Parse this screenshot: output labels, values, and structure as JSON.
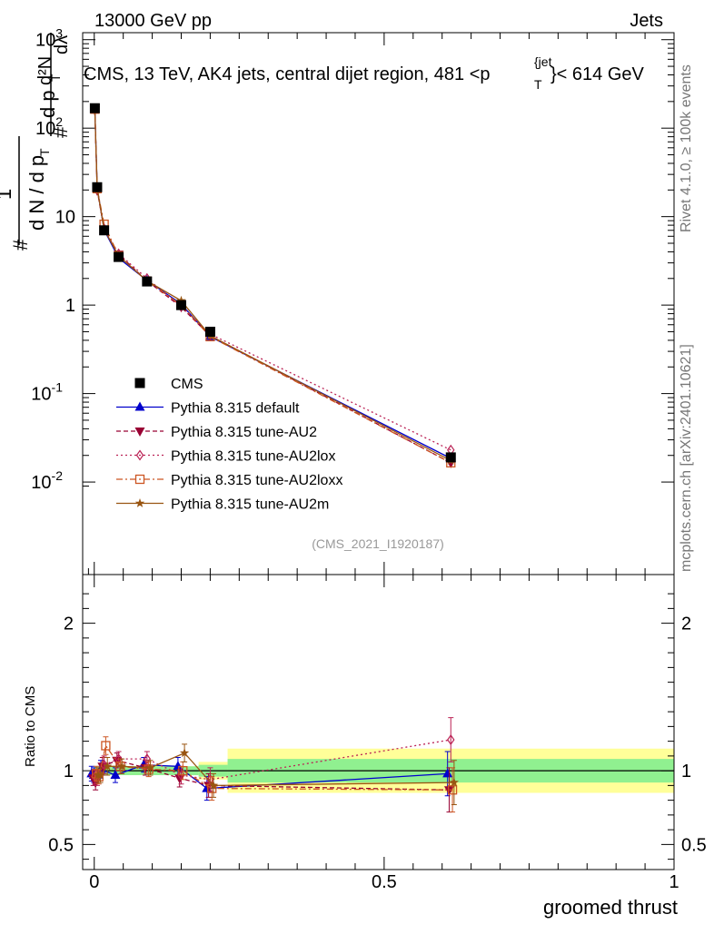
{
  "header": {
    "left": "13000 GeV pp",
    "right": "Jets"
  },
  "side_texts": {
    "rivet": "Rivet 4.1.0, ≥ 100k events",
    "mcplots": "mcplots.cern.ch [arXiv:2401.10621]"
  },
  "watermark": "(CMS_2021_I1920187)",
  "title_parts": {
    "main": "CMS, 13 TeV, AK4 jets, central dijet region, 481 <p",
    "sub": "T",
    "sup": "{jet",
    "tail": "}< 614 GeV"
  },
  "ylabel_top": {
    "hash1": "#",
    "one": "1",
    "dn": "d N / d p",
    "t1": "T",
    "hash2": "#",
    "d2n": "d²N",
    "dp": "d p",
    "t2": "T",
    "dl": "dλ"
  },
  "ylabel_bottom": "Ratio to CMS",
  "xlabel": "groomed thrust",
  "colors": {
    "cms": "#000000",
    "default": "#0000cc",
    "au2": "#990033",
    "au2lox": "#bb2255",
    "au2loxx": "#cc5522",
    "au2m": "#995511",
    "band_inner": "#90f090",
    "band_outer": "#ffff99"
  },
  "chart_data": [
    {
      "type": "line",
      "yscale": "log",
      "xlim": [
        -0.02,
        1.0
      ],
      "ylim": [
        0.0009,
        1200
      ],
      "y_ticks": [
        {
          "value": 0.01,
          "label": "10",
          "exp": "-2"
        },
        {
          "value": 0.1,
          "label": "10",
          "exp": "-1"
        },
        {
          "value": 1,
          "label": "1",
          "exp": ""
        },
        {
          "value": 10,
          "label": "10",
          "exp": ""
        },
        {
          "value": 100,
          "label": "10",
          "exp": "2"
        },
        {
          "value": 1000,
          "label": "10",
          "exp": "3"
        }
      ],
      "x": [
        0.001,
        0.005,
        0.017,
        0.042,
        0.091,
        0.15,
        0.2,
        0.615
      ],
      "series": [
        {
          "name": "CMS",
          "key": "cms",
          "marker": "square",
          "values": [
            168,
            21.5,
            7.0,
            3.5,
            1.85,
            1.0,
            0.5,
            0.019
          ]
        },
        {
          "name": "Pythia 8.315 default",
          "key": "default",
          "marker": "triangle-up",
          "values": [
            165,
            21.0,
            7.1,
            3.4,
            1.9,
            1.03,
            0.44,
            0.0185
          ]
        },
        {
          "name": "Pythia 8.315 tune-AU2",
          "key": "au2",
          "marker": "triangle-down",
          "values": [
            160,
            19.8,
            7.2,
            3.75,
            1.88,
            0.95,
            0.45,
            0.0165
          ]
        },
        {
          "name": "Pythia 8.315 tune-AU2lox",
          "key": "au2lox",
          "marker": "diamond",
          "values": [
            162,
            20.5,
            7.3,
            3.8,
            2.0,
            0.97,
            0.47,
            0.023
          ]
        },
        {
          "name": "Pythia 8.315 tune-AU2loxx",
          "key": "au2loxx",
          "marker": "open-square",
          "values": [
            164,
            20.7,
            8.2,
            3.6,
            1.87,
            1.0,
            0.44,
            0.0165
          ]
        },
        {
          "name": "Pythia 8.315 tune-AU2m",
          "key": "au2m",
          "marker": "star",
          "values": [
            163,
            20.9,
            7.2,
            3.6,
            1.88,
            1.12,
            0.45,
            0.0175
          ]
        }
      ]
    },
    {
      "type": "line",
      "ylabel": "Ratio to CMS",
      "xlabel": "groomed thrust",
      "xlim": [
        -0.02,
        1.0
      ],
      "ylim": [
        0.33,
        2.33
      ],
      "x_ticks": [
        {
          "value": 0,
          "label": "0"
        },
        {
          "value": 0.5,
          "label": "0.5"
        },
        {
          "value": 1,
          "label": "1"
        }
      ],
      "y_ticks": [
        {
          "value": 0.5,
          "label": "0.5"
        },
        {
          "value": 1,
          "label": "1"
        },
        {
          "value": 2,
          "label": "2"
        }
      ],
      "band_bins": [
        0,
        0.003,
        0.008,
        0.03,
        0.06,
        0.12,
        0.18,
        0.23,
        1.0
      ],
      "band_inner": [
        0.03,
        0.03,
        0.03,
        0.03,
        0.03,
        0.03,
        0.04,
        0.08
      ],
      "band_outer": [
        0.03,
        0.03,
        0.03,
        0.03,
        0.03,
        0.03,
        0.06,
        0.15
      ],
      "x": [
        0.001,
        0.005,
        0.017,
        0.042,
        0.091,
        0.15,
        0.2,
        0.615
      ],
      "series": [
        {
          "name": "Pythia 8.315 default",
          "key": "default",
          "marker": "triangle-up",
          "values": [
            0.98,
            0.97,
            1.01,
            0.97,
            1.04,
            1.03,
            0.88,
            0.98
          ]
        },
        {
          "name": "Pythia 8.315 tune-AU2",
          "key": "au2",
          "marker": "triangle-down",
          "values": [
            0.95,
            0.92,
            1.03,
            1.07,
            1.02,
            0.95,
            0.9,
            0.87
          ]
        },
        {
          "name": "Pythia 8.315 tune-AU2lox",
          "key": "au2lox",
          "marker": "diamond",
          "values": [
            0.96,
            0.95,
            1.04,
            1.08,
            1.08,
            0.97,
            0.94,
            1.21
          ]
        },
        {
          "name": "Pythia 8.315 tune-AU2loxx",
          "key": "au2loxx",
          "marker": "open-square",
          "values": [
            0.98,
            0.96,
            1.17,
            1.03,
            1.01,
            1.0,
            0.88,
            0.87
          ]
        },
        {
          "name": "Pythia 8.315 tune-AU2m",
          "key": "au2m",
          "marker": "star",
          "values": [
            0.97,
            0.97,
            1.03,
            1.03,
            1.02,
            1.12,
            0.9,
            0.92
          ]
        }
      ],
      "errors": [
        0.05,
        0.05,
        0.06,
        0.05,
        0.05,
        0.06,
        0.08,
        0.15
      ]
    }
  ]
}
